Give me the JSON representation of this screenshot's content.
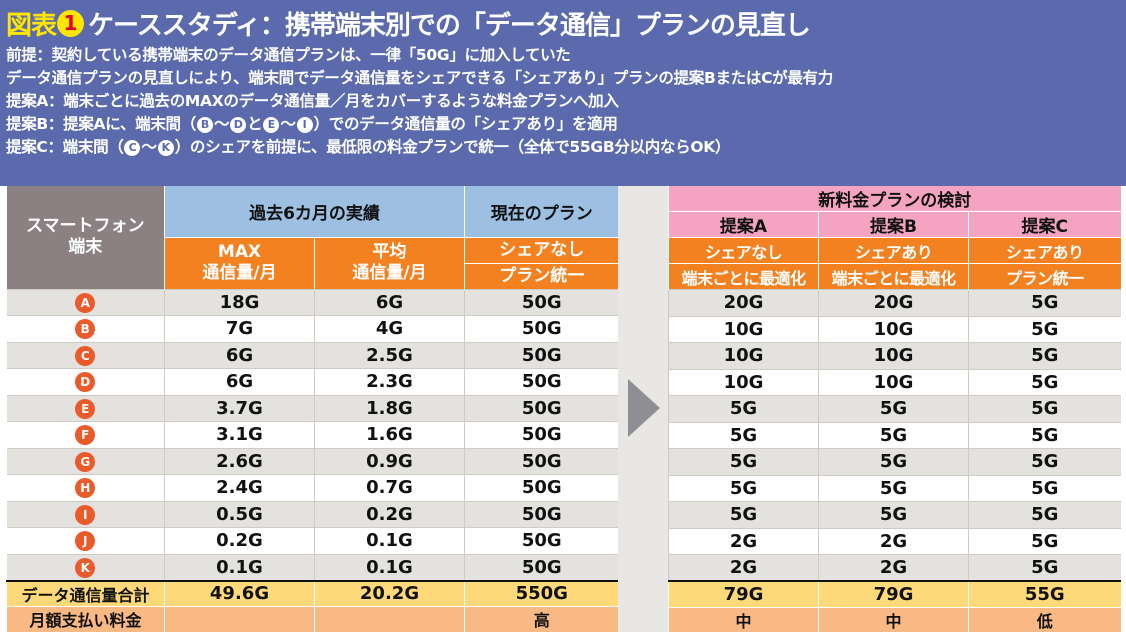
{
  "header": {
    "fig_label": "図表",
    "fig_number": "1",
    "title": "ケーススタディ：携帯端末別での「データ通信」プランの見直し",
    "notes": {
      "premise": "前提：契約している携帯端末のデータ通信プランは、一律「50G」に加入していた",
      "conclusion": "データ通信プランの見直しにより、端末間でデータ通信量をシェアできる「シェアあり」プランの提案BまたはCが最有力",
      "proposal_a": "提案A：端末ごとに過去のMAXのデータ通信量／月をカバーするような料金プランへ加入",
      "proposal_b_pre": "提案B：提案Aに、端末間（",
      "proposal_b_m1": "B",
      "proposal_b_t1": "〜",
      "proposal_b_m2": "D",
      "proposal_b_t2": "と",
      "proposal_b_m3": "E",
      "proposal_b_t3": "〜",
      "proposal_b_m4": "I",
      "proposal_b_post": "）でのデータ通信量の「シェアあり」を適用",
      "proposal_c_pre": "提案C：端末間（",
      "proposal_c_m1": "C",
      "proposal_c_t1": "〜",
      "proposal_c_m2": "K",
      "proposal_c_post": "）のシェアを前提に、最低限の料金プランで統一（全体で55GB分以内ならOK）"
    }
  },
  "table": {
    "terminal_header_1": "スマートフォン",
    "terminal_header_2": "端末",
    "past_header": "過去6カ月の実績",
    "max_header_1": "MAX",
    "max_header_2": "通信量/月",
    "avg_header_1": "平均",
    "avg_header_2": "通信量/月",
    "current_header": "現在のプラン",
    "current_sub_1": "シェアなし",
    "current_sub_2": "プラン統一",
    "new_header": "新料金プランの検討",
    "a_header": "提案A",
    "a_sub_1": "シェアなし",
    "a_sub_2": "端末ごとに最適化",
    "b_header": "提案B",
    "b_sub_1": "シェアあり",
    "b_sub_2": "端末ごとに最適化",
    "c_header": "提案C",
    "c_sub_1": "シェアあり",
    "c_sub_2": "プラン統一",
    "rows": [
      {
        "term": "A",
        "max": "18G",
        "avg": "6G",
        "current": "50G",
        "a": "20G",
        "b": "20G",
        "c": "5G"
      },
      {
        "term": "B",
        "max": "7G",
        "avg": "4G",
        "current": "50G",
        "a": "10G",
        "b": "10G",
        "c": "5G"
      },
      {
        "term": "C",
        "max": "6G",
        "avg": "2.5G",
        "current": "50G",
        "a": "10G",
        "b": "10G",
        "c": "5G"
      },
      {
        "term": "D",
        "max": "6G",
        "avg": "2.3G",
        "current": "50G",
        "a": "10G",
        "b": "10G",
        "c": "5G"
      },
      {
        "term": "E",
        "max": "3.7G",
        "avg": "1.8G",
        "current": "50G",
        "a": "5G",
        "b": "5G",
        "c": "5G"
      },
      {
        "term": "F",
        "max": "3.1G",
        "avg": "1.6G",
        "current": "50G",
        "a": "5G",
        "b": "5G",
        "c": "5G"
      },
      {
        "term": "G",
        "max": "2.6G",
        "avg": "0.9G",
        "current": "50G",
        "a": "5G",
        "b": "5G",
        "c": "5G"
      },
      {
        "term": "H",
        "max": "2.4G",
        "avg": "0.7G",
        "current": "50G",
        "a": "5G",
        "b": "5G",
        "c": "5G"
      },
      {
        "term": "I",
        "max": "0.5G",
        "avg": "0.2G",
        "current": "50G",
        "a": "5G",
        "b": "5G",
        "c": "5G"
      },
      {
        "term": "J",
        "max": "0.2G",
        "avg": "0.1G",
        "current": "50G",
        "a": "2G",
        "b": "2G",
        "c": "5G"
      },
      {
        "term": "K",
        "max": "0.1G",
        "avg": "0.1G",
        "current": "50G",
        "a": "2G",
        "b": "2G",
        "c": "5G"
      }
    ],
    "total": {
      "label": "データ通信量合計",
      "max": "49.6G",
      "avg": "20.2G",
      "current": "550G",
      "a": "79G",
      "b": "79G",
      "c": "55G"
    },
    "fee": {
      "label": "月額支払い料金",
      "max": "",
      "avg": "",
      "current": "高",
      "a": "中",
      "b": "中",
      "c": "低"
    }
  },
  "colors": {
    "header_bg": "#5a6aad",
    "title_accent": "#ffe600",
    "badge_red": "#ea5a2a",
    "orange": "#f38120",
    "blue": "#9cbfe2",
    "pink": "#f4a4c0",
    "total_yellow": "#fdd97a"
  },
  "icons": {
    "transition": "right-arrow-icon",
    "terminal": "circled-letter-icon"
  }
}
